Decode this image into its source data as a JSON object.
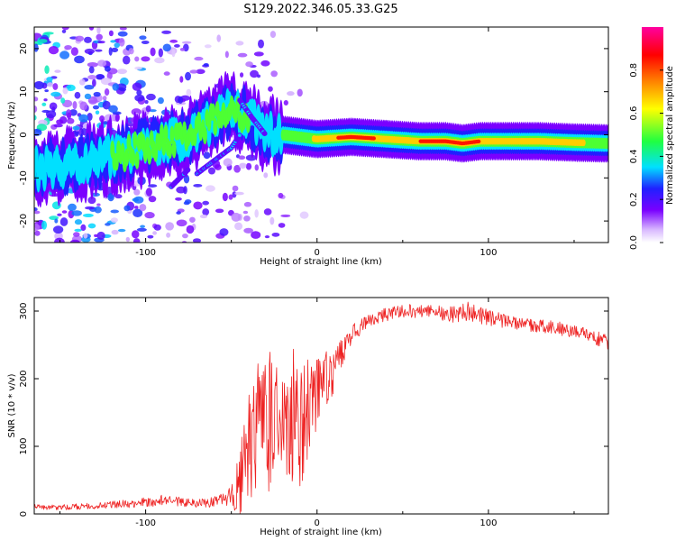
{
  "figure": {
    "title": "S129.2022.346.05.33.G25"
  },
  "chart_data": [
    {
      "type": "heatmap",
      "title": "S129.2022.346.05.33.G25",
      "xlabel": "Height of straight line (km)",
      "ylabel": "Frequency (Hz)",
      "xlim": [
        -165,
        170
      ],
      "ylim": [
        -25,
        25
      ],
      "x_ticks": [
        "-100",
        "0",
        "100"
      ],
      "y_ticks": [
        "-20",
        "-10",
        "0",
        "10",
        "20"
      ],
      "colorbar": {
        "label": "Normalized spectral amplitude",
        "ticks": [
          "0.0",
          "0.2",
          "0.4",
          "0.6",
          "0.8"
        ],
        "range": [
          0,
          1
        ],
        "colors": [
          "#ffffff",
          "#d8b8ff",
          "#7a00ff",
          "#2020ff",
          "#00e0ff",
          "#20ff40",
          "#ffff00",
          "#ff8000",
          "#ff0000",
          "#ff00a0"
        ]
      },
      "ridge": {
        "x": [
          -165,
          -140,
          -120,
          -100,
          -80,
          -65,
          -50,
          -40,
          -30,
          -20,
          0,
          20,
          40,
          60,
          75,
          85,
          95,
          110,
          130,
          150,
          170
        ],
        "frequency": [
          -8,
          -7,
          -5,
          -3,
          -1,
          2,
          6,
          4,
          0,
          0,
          -1,
          -0.5,
          -1,
          -1.5,
          -1.5,
          -2,
          -1.5,
          -1.5,
          -1.5,
          -1.8,
          -2
        ],
        "amplitude": [
          0.35,
          0.4,
          0.45,
          0.5,
          0.45,
          0.45,
          0.5,
          0.45,
          0.4,
          0.45,
          0.65,
          0.9,
          0.75,
          0.8,
          0.85,
          0.85,
          0.8,
          0.75,
          0.7,
          0.65,
          0.55
        ]
      },
      "branches": [
        {
          "x": [
            -70,
            -60,
            -50,
            -45
          ],
          "frequency": [
            -9,
            -6,
            -3,
            0
          ]
        },
        {
          "x": [
            -45,
            -38,
            -30
          ],
          "frequency": [
            8,
            4,
            0
          ]
        },
        {
          "x": [
            -85,
            -80,
            -75
          ],
          "frequency": [
            -12,
            -10,
            -8
          ]
        }
      ]
    },
    {
      "type": "line",
      "xlabel": "Height of straight line (km)",
      "ylabel": "SNR (10 * v/v)",
      "xlim": [
        -165,
        170
      ],
      "ylim": [
        0,
        320
      ],
      "x_ticks": [
        "-100",
        "0",
        "100"
      ],
      "y_ticks": [
        "0",
        "100",
        "200",
        "300"
      ],
      "series": [
        {
          "color": "#ee2222",
          "x": [
            -165,
            -150,
            -130,
            -110,
            -100,
            -90,
            -80,
            -70,
            -60,
            -50,
            -45,
            -40,
            -35,
            -30,
            -25,
            -20,
            -15,
            -10,
            -5,
            0,
            5,
            10,
            15,
            20,
            25,
            30,
            40,
            50,
            60,
            70,
            80,
            90,
            100,
            110,
            120,
            130,
            140,
            150,
            160,
            170
          ],
          "values": [
            10,
            10,
            12,
            15,
            18,
            20,
            18,
            15,
            18,
            25,
            45,
            100,
            120,
            150,
            130,
            140,
            150,
            130,
            150,
            180,
            200,
            215,
            240,
            265,
            275,
            285,
            295,
            300,
            300,
            298,
            295,
            300,
            290,
            285,
            280,
            278,
            275,
            270,
            262,
            255
          ],
          "noise": [
            4,
            4,
            5,
            6,
            8,
            8,
            7,
            6,
            8,
            15,
            50,
            90,
            100,
            110,
            110,
            100,
            110,
            90,
            80,
            50,
            40,
            40,
            20,
            15,
            12,
            10,
            10,
            10,
            10,
            10,
            12,
            15,
            12,
            10,
            10,
            10,
            10,
            10,
            10,
            12
          ]
        }
      ]
    }
  ]
}
